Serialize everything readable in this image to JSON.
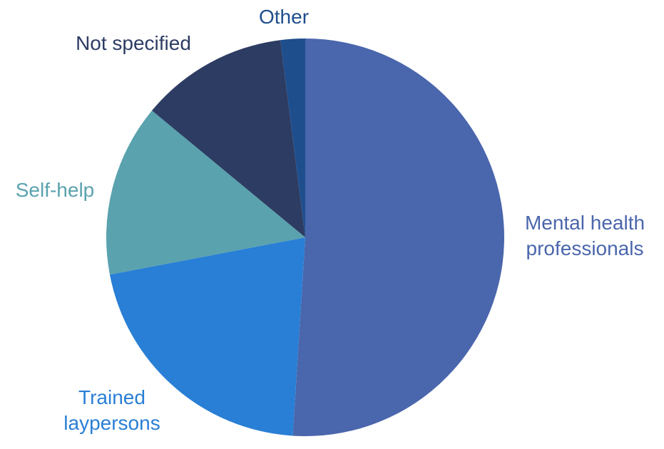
{
  "chart_data": {
    "type": "pie",
    "categories": [
      "Mental health professionals",
      "Trained laypersons",
      "Self-help",
      "Not specified",
      "Other"
    ],
    "values": [
      51,
      21,
      14,
      12,
      2
    ],
    "colors": [
      "#4A66AC",
      "#297FD5",
      "#5AA2AE",
      "#2D3C63",
      "#1F4E8C"
    ],
    "legend": "none",
    "slices": [
      {
        "label_lines": [
          "Mental health",
          "professionals"
        ],
        "color": "#4A66AC",
        "value": 51
      },
      {
        "label_lines": [
          "Trained",
          "laypersons"
        ],
        "color": "#297FD5",
        "value": 21
      },
      {
        "label_lines": [
          "Self-help"
        ],
        "color": "#5AA2AE",
        "value": 14
      },
      {
        "label_lines": [
          "Not specified"
        ],
        "color": "#2D3C63",
        "value": 12
      },
      {
        "label_lines": [
          "Other"
        ],
        "color": "#1F4E8C",
        "value": 2
      }
    ]
  }
}
